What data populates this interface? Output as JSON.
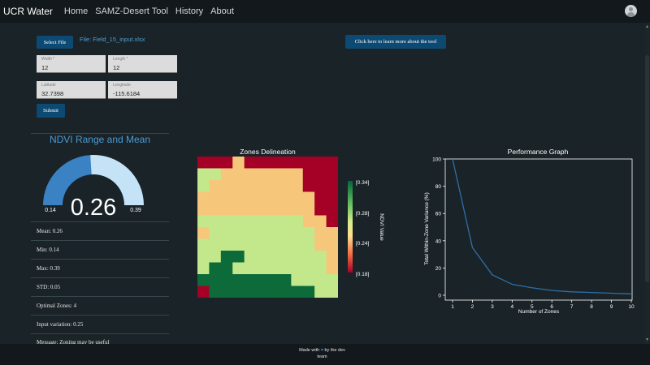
{
  "nav": {
    "brand": "UCR Water",
    "links": [
      "Home",
      "SAMZ-Desert Tool",
      "History",
      "About"
    ]
  },
  "form": {
    "select_file_label": "Select File",
    "file_name": "File: Field_15_input.xlsx",
    "learn_more_label": "Click here to learn more about the tool",
    "width": {
      "label": "Width *",
      "value": "12"
    },
    "length": {
      "label": "Length *",
      "value": "12"
    },
    "latitude": {
      "label": "Latitude",
      "value": "32.7398"
    },
    "longitude": {
      "label": "Longitude",
      "value": "-115.6184"
    },
    "submit_label": "Submit"
  },
  "gauge": {
    "title": "NDVI Range and Mean",
    "min_label": "0.14",
    "max_label": "0.39",
    "value_label": "0.26",
    "min": 0.14,
    "max": 0.39,
    "value": 0.26,
    "fill_color": "#3b82c4",
    "rest_color": "#c5e3f7"
  },
  "stats": [
    "Mean: 0.26",
    "Min: 0.14",
    "Max: 0.39",
    "STD: 0.05",
    "Optimal Zones: 4",
    "Input variation: 0.25",
    "Message: Zoning may be useful"
  ],
  "zones": {
    "title": "Zones Delineation",
    "colorbar_label": "NDVI Value",
    "colorbar_ticks": [
      "[0.34]",
      "[0.28]",
      "[0.24]",
      "[0.18]"
    ],
    "palette": [
      "#a50026",
      "#f6c77a",
      "#c2e88b",
      "#0d6b3a"
    ],
    "grid": [
      [
        0,
        0,
        0,
        1,
        0,
        0,
        0,
        0,
        0,
        0,
        0,
        0
      ],
      [
        2,
        2,
        1,
        1,
        1,
        1,
        1,
        1,
        1,
        0,
        0,
        0
      ],
      [
        2,
        1,
        1,
        1,
        1,
        1,
        1,
        1,
        1,
        0,
        0,
        0
      ],
      [
        1,
        1,
        1,
        1,
        1,
        1,
        1,
        1,
        1,
        1,
        0,
        0
      ],
      [
        1,
        1,
        1,
        1,
        1,
        1,
        1,
        1,
        1,
        1,
        0,
        0
      ],
      [
        2,
        2,
        2,
        2,
        2,
        2,
        2,
        2,
        2,
        1,
        1,
        0
      ],
      [
        1,
        2,
        2,
        2,
        2,
        2,
        2,
        2,
        2,
        2,
        1,
        1
      ],
      [
        2,
        2,
        2,
        2,
        2,
        2,
        2,
        2,
        2,
        2,
        1,
        1
      ],
      [
        2,
        2,
        3,
        3,
        2,
        2,
        2,
        2,
        2,
        2,
        2,
        1
      ],
      [
        2,
        3,
        3,
        2,
        2,
        2,
        2,
        2,
        2,
        2,
        2,
        1
      ],
      [
        3,
        3,
        3,
        3,
        3,
        3,
        3,
        3,
        2,
        2,
        2,
        2
      ],
      [
        0,
        3,
        3,
        3,
        3,
        3,
        3,
        3,
        3,
        3,
        2,
        2
      ]
    ]
  },
  "chart_data": {
    "type": "line",
    "title": "Performance Graph",
    "xlabel": "Number of Zones",
    "ylabel": "Total Within-Zone Variance (%)",
    "x": [
      1,
      2,
      3,
      4,
      5,
      6,
      7,
      8,
      9,
      10
    ],
    "values": [
      100,
      35,
      15,
      8,
      5.5,
      3.5,
      2.5,
      2,
      1.5,
      1
    ],
    "xlim": [
      1,
      10
    ],
    "ylim": [
      0,
      100
    ],
    "yticks": [
      0,
      20,
      40,
      60,
      80,
      100
    ],
    "line_color": "#2f6fa8",
    "grid": false
  },
  "footer": {
    "text_before": "Made with",
    "text_after": "by the dev",
    "text_line2": "team",
    "heart_color": "#3b82c4"
  }
}
